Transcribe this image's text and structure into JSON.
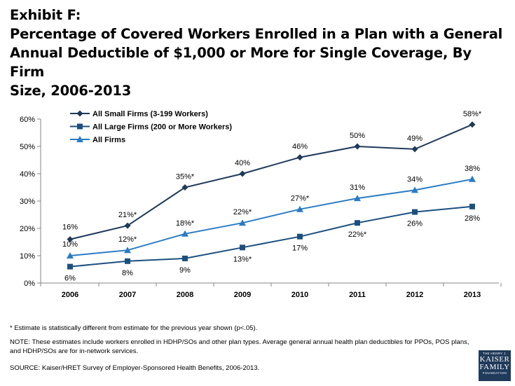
{
  "title": {
    "line1": "Exhibit F:",
    "line2": "Percentage of Covered Workers Enrolled in a Plan with a General",
    "line3": "Annual Deductible of $1,000 or More for Single Coverage, By Firm",
    "line4": "Size, 2006-2013"
  },
  "chart_data": {
    "type": "line",
    "categories": [
      "2006",
      "2007",
      "2008",
      "2009",
      "2010",
      "2011",
      "2012",
      "2013"
    ],
    "ylim": [
      0,
      60
    ],
    "yticks": [
      "0%",
      "10%",
      "20%",
      "30%",
      "40%",
      "50%",
      "60%"
    ],
    "series": [
      {
        "name": "All Small Firms (3-199 Workers)",
        "marker": "diamond",
        "color": "#1f3a5a",
        "values": [
          16,
          21,
          35,
          40,
          46,
          50,
          49,
          58
        ],
        "labels": [
          "16%",
          "21%*",
          "35%*",
          "40%",
          "46%",
          "50%",
          "49%",
          "58%*"
        ]
      },
      {
        "name": "All Large Firms (200 or More Workers)",
        "marker": "square",
        "color": "#1c4f7f",
        "values": [
          6,
          8,
          9,
          13,
          17,
          22,
          26,
          28
        ],
        "labels": [
          "6%",
          "8%",
          "9%",
          "13%*",
          "17%",
          "22%*",
          "26%",
          "28%"
        ]
      },
      {
        "name": "All Firms",
        "marker": "triangle",
        "color": "#2a7bc4",
        "values": [
          10,
          12,
          18,
          22,
          27,
          31,
          34,
          38
        ],
        "labels": [
          "10%",
          "12%*",
          "18%*",
          "22%*",
          "27%*",
          "31%",
          "34%",
          "38%"
        ]
      }
    ]
  },
  "footer": {
    "asterisk_note": "* Estimate is statistically different from estimate for the previous year shown (p<.05).",
    "note": "NOTE: These estimates include workers enrolled in HDHP/SOs and other plan types.  Average general annual health plan deductibles for PPOs, POS plans, and HDHP/SOs are for in-network services.",
    "source": "SOURCE: Kaiser/HRET Survey of Employer-Sponsored Health Benefits, 2006-2013."
  },
  "logo": {
    "line1": "THE HENRY J.",
    "line2": "KAISER",
    "line3": "FAMILY",
    "line4": "FOUNDATION"
  }
}
